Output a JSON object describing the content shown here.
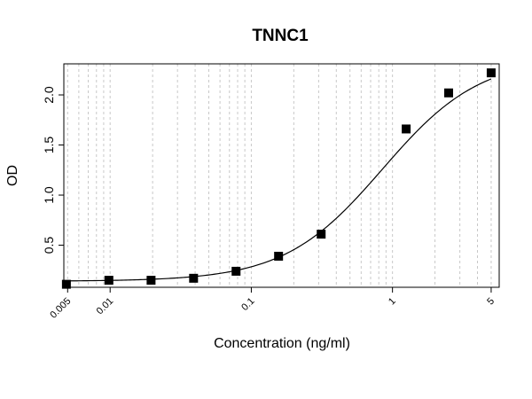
{
  "chart_data": {
    "type": "scatter",
    "title": "TNNC1",
    "xlabel": "Concentration (ng/ml)",
    "ylabel": "OD",
    "x_scale": "log",
    "xlim": [
      0.0047,
      5.7
    ],
    "ylim": [
      0.08,
      2.31
    ],
    "grid": "vertical, dotted, on",
    "x_tick_labels": [
      {
        "value": 0.005,
        "label": "0.005"
      },
      {
        "value": 0.01,
        "label": "0.01"
      },
      {
        "value": 0.1,
        "label": "0.1"
      },
      {
        "value": 1,
        "label": "1"
      },
      {
        "value": 5,
        "label": "5"
      }
    ],
    "y_tick_labels": [
      {
        "value": 0.5,
        "label": "0.5"
      },
      {
        "value": 1.0,
        "label": "1.0"
      },
      {
        "value": 1.5,
        "label": "1.5"
      },
      {
        "value": 2.0,
        "label": "2.0"
      }
    ],
    "x": [
      0.0049,
      0.0098,
      0.0195,
      0.039,
      0.078,
      0.156,
      0.3125,
      1.25,
      2.5,
      5
    ],
    "y": [
      0.11,
      0.15,
      0.15,
      0.17,
      0.24,
      0.39,
      0.61,
      1.66,
      2.02,
      2.22
    ],
    "fitted_curve": {
      "type": "4PL",
      "bottom": 0.14,
      "top": 2.38,
      "ec50": 0.85,
      "hill": 1.25
    }
  }
}
